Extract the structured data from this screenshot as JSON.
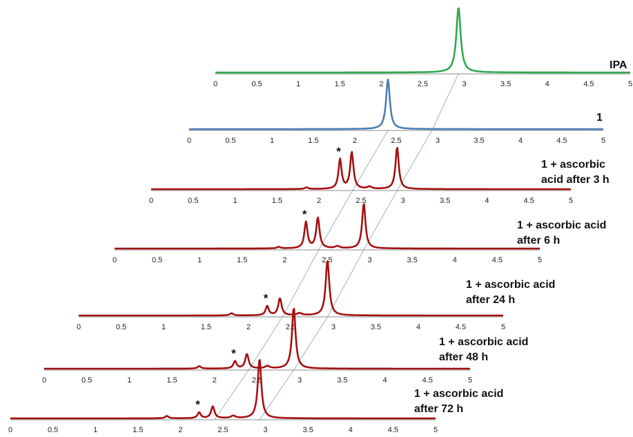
{
  "chart_data": {
    "type": "line",
    "title": "",
    "xlabel": "",
    "ylabel": "",
    "xlim": [
      0,
      5
    ],
    "x_ticks": [
      "0",
      "0.5",
      "1",
      "1.5",
      "2",
      "2.5",
      "3",
      "3.5",
      "4",
      "4.5",
      "5"
    ],
    "grid": false,
    "layout": "stacked waterfall, each trace offset to the left below the previous one",
    "guide_lines": "thin slanted lines connecting peak positions across traces",
    "series": [
      {
        "label_lines": [
          "IPA"
        ],
        "color": "#2eaa4e",
        "peaks": [
          {
            "x": 2.93,
            "height": 1.0,
            "width": 0.04
          }
        ]
      },
      {
        "label_lines": [
          "1"
        ],
        "color": "#4a7fb5",
        "peaks": [
          {
            "x": 2.4,
            "height": 1.0,
            "width": 0.035
          }
        ]
      },
      {
        "label_lines": [
          "1 + ascorbic",
          "acid after 3 h"
        ],
        "color": "#a50f0f",
        "marker": "*",
        "peaks": [
          {
            "x": 2.25,
            "height": 0.55,
            "width": 0.028
          },
          {
            "x": 2.39,
            "height": 0.68,
            "width": 0.03
          },
          {
            "x": 2.93,
            "height": 0.78,
            "width": 0.03
          },
          {
            "x": 1.85,
            "height": 0.03,
            "width": 0.03
          },
          {
            "x": 2.6,
            "height": 0.04,
            "width": 0.04
          }
        ],
        "marker_peak": 0
      },
      {
        "label_lines": [
          "1 + ascorbic  acid",
          "after 6 h"
        ],
        "color": "#a50f0f",
        "marker": "*",
        "peaks": [
          {
            "x": 2.25,
            "height": 0.5,
            "width": 0.028
          },
          {
            "x": 2.39,
            "height": 0.58,
            "width": 0.03
          },
          {
            "x": 2.93,
            "height": 0.86,
            "width": 0.03
          },
          {
            "x": 1.93,
            "height": 0.03,
            "width": 0.03
          },
          {
            "x": 2.62,
            "height": 0.04,
            "width": 0.04
          }
        ],
        "marker_peak": 0
      },
      {
        "label_lines": [
          "1 + ascorbic  acid",
          "after 24 h"
        ],
        "color": "#a50f0f",
        "marker": "*",
        "peaks": [
          {
            "x": 2.22,
            "height": 0.17,
            "width": 0.028
          },
          {
            "x": 2.37,
            "height": 0.31,
            "width": 0.03
          },
          {
            "x": 2.93,
            "height": 1.0,
            "width": 0.032
          },
          {
            "x": 1.8,
            "height": 0.04,
            "width": 0.03
          },
          {
            "x": 2.6,
            "height": 0.04,
            "width": 0.04
          }
        ],
        "marker_peak": 0
      },
      {
        "label_lines": [
          "1 + ascorbic  acid",
          "after 48 h"
        ],
        "color": "#a50f0f",
        "marker": "*",
        "peaks": [
          {
            "x": 2.24,
            "height": 0.12,
            "width": 0.028
          },
          {
            "x": 2.38,
            "height": 0.24,
            "width": 0.03
          },
          {
            "x": 2.93,
            "height": 1.0,
            "width": 0.032
          },
          {
            "x": 1.82,
            "height": 0.04,
            "width": 0.03
          },
          {
            "x": 2.62,
            "height": 0.04,
            "width": 0.04
          }
        ],
        "marker_peak": 0
      },
      {
        "label_lines": [
          "1 + ascorbic  acid",
          "after 72 h"
        ],
        "color": "#a50f0f",
        "marker": "*",
        "peaks": [
          {
            "x": 2.22,
            "height": 0.1,
            "width": 0.028
          },
          {
            "x": 2.38,
            "height": 0.2,
            "width": 0.03
          },
          {
            "x": 2.93,
            "height": 1.0,
            "width": 0.032
          },
          {
            "x": 1.84,
            "height": 0.04,
            "width": 0.03
          },
          {
            "x": 2.62,
            "height": 0.04,
            "width": 0.04
          }
        ],
        "marker_peak": 0
      }
    ]
  }
}
